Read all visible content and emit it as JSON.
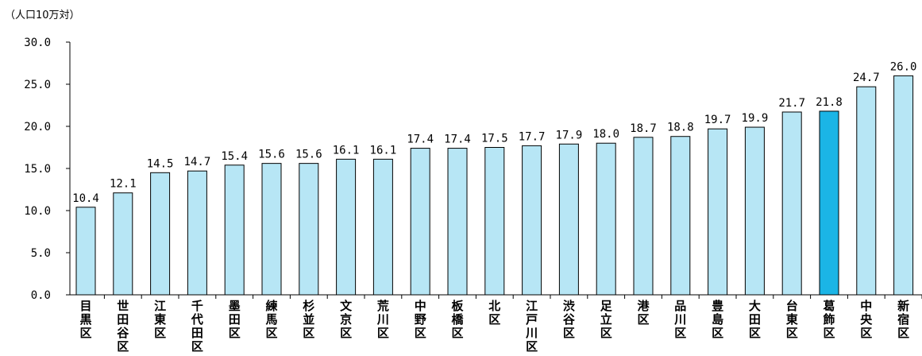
{
  "chart_data": {
    "type": "bar",
    "unit_label": "（人口10万対）",
    "categories": [
      "目黒区",
      "世田谷区",
      "江東区",
      "千代田区",
      "墨田区",
      "練馬区",
      "杉並区",
      "文京区",
      "荒川区",
      "中野区",
      "板橋区",
      "北区",
      "江戸川区",
      "渋谷区",
      "足立区",
      "港区",
      "品川区",
      "豊島区",
      "大田区",
      "台東区",
      "葛飾区",
      "中央区",
      "新宿区"
    ],
    "values": [
      10.4,
      12.1,
      14.5,
      14.7,
      15.4,
      15.6,
      15.6,
      16.1,
      16.1,
      17.4,
      17.4,
      17.5,
      17.7,
      17.9,
      18.0,
      18.7,
      18.8,
      19.7,
      19.9,
      21.7,
      21.8,
      24.7,
      26.0
    ],
    "value_labels": [
      "10.4",
      "12.1",
      "14.5",
      "14.7",
      "15.4",
      "15.6",
      "15.6",
      "16.1",
      "16.1",
      "17.4",
      "17.4",
      "17.5",
      "17.7",
      "17.9",
      "18.0",
      "18.7",
      "18.8",
      "19.7",
      "19.9",
      "21.7",
      "21.8",
      "24.7",
      "26.0"
    ],
    "ylim": [
      0,
      30
    ],
    "yticks": [
      "0.0",
      "5.0",
      "10.0",
      "15.0",
      "20.0",
      "25.0",
      "30.0"
    ],
    "highlight_category": "葛飾区",
    "colors": {
      "bar": "#b7e6f5",
      "highlight": "#1bb5e6",
      "outline": "#000000"
    },
    "grid": false,
    "legend": "none",
    "xlabel": "",
    "ylabel": ""
  }
}
